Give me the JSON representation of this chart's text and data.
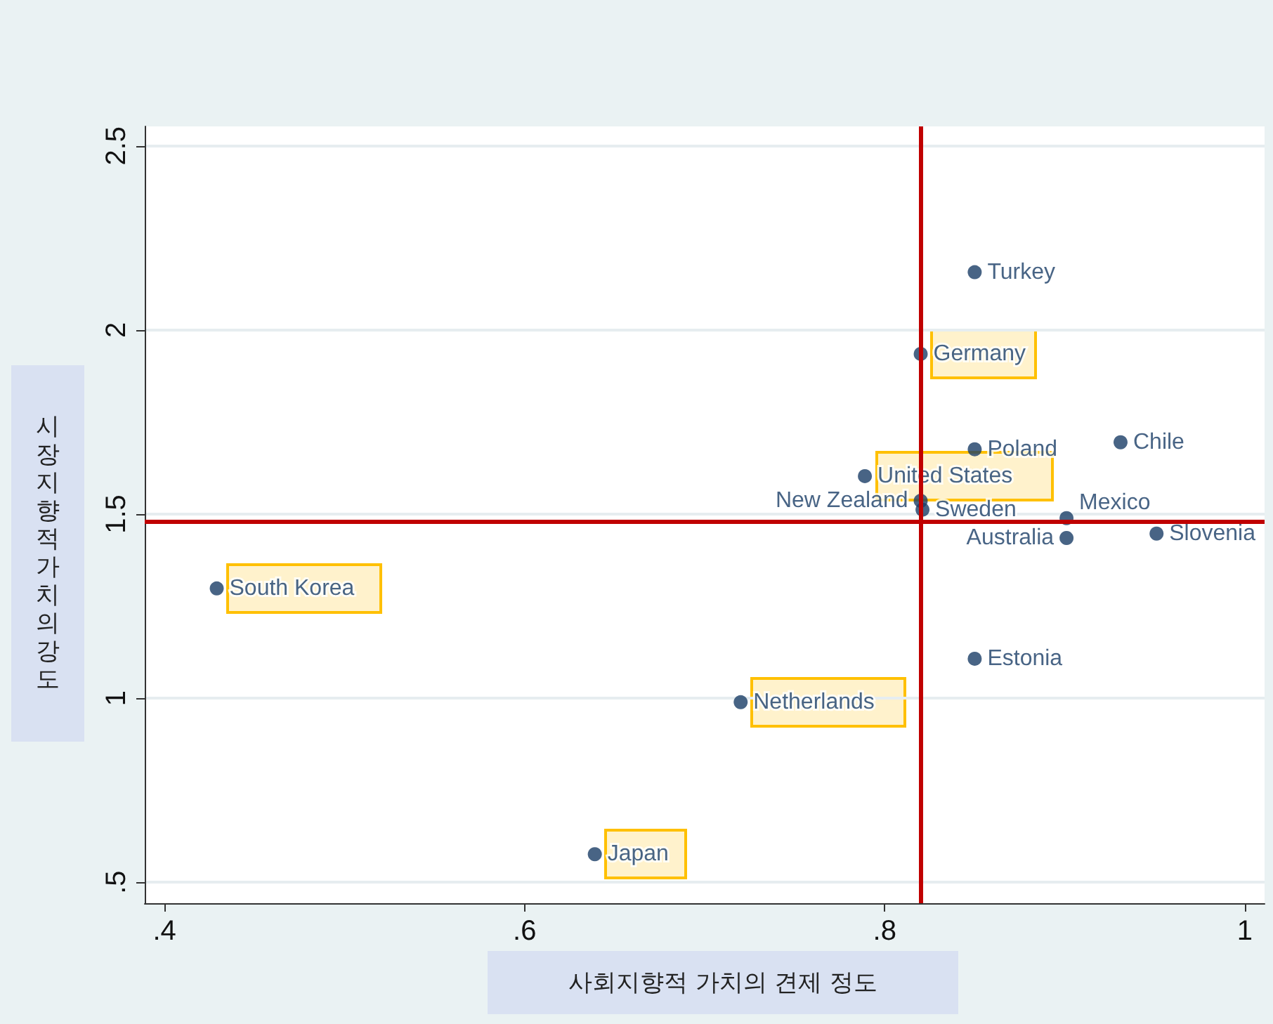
{
  "chart_data": {
    "type": "scatter",
    "xlabel": "사회지향적 가치의 견제 정도",
    "ylabel": "시장지향적 가치의 강도",
    "xlim": [
      0.389,
      1.011
    ],
    "ylim": [
      0.443,
      2.553
    ],
    "xticks": [
      {
        "value": 0.4,
        "label": ".4"
      },
      {
        "value": 0.6,
        "label": ".6"
      },
      {
        "value": 0.8,
        "label": ".8"
      },
      {
        "value": 1,
        "label": "1"
      }
    ],
    "yticks": [
      {
        "value": 0.5,
        "label": ".5"
      },
      {
        "value": 1,
        "label": "1"
      },
      {
        "value": 1.5,
        "label": "1.5"
      },
      {
        "value": 2,
        "label": "2"
      },
      {
        "value": 2.5,
        "label": "2.5"
      }
    ],
    "grid": "y",
    "marker": "circle",
    "series": [
      {
        "color": "#1a3d66",
        "x": [
          0.85,
          0.85,
          0.931,
          0.821,
          0.82,
          0.901,
          0.901,
          0.951,
          0.85
        ],
        "values": [
          2.157,
          1.676,
          1.695,
          1.512,
          1.536,
          1.489,
          1.435,
          1.447,
          1.107
        ]
      },
      {
        "color": "#1a3d66",
        "x": [
          0.82,
          0.789,
          0.429,
          0.72,
          0.639
        ],
        "values": [
          1.935,
          1.603,
          1.298,
          0.989,
          0.576
        ]
      }
    ],
    "annotations": [
      {
        "text": "Turkey",
        "x": 0.85,
        "y": 2.157
      },
      {
        "text": "Poland",
        "x": 0.85,
        "y": 1.676
      },
      {
        "text": "Chile",
        "x": 0.931,
        "y": 1.695
      },
      {
        "text": "Sweden",
        "x": 0.821,
        "y": 1.512
      },
      {
        "text": "New Zealand",
        "x": 0.82,
        "y": 1.536
      },
      {
        "text": "Mexico",
        "x": 0.901,
        "y": 1.489
      },
      {
        "text": "Australia",
        "x": 0.901,
        "y": 1.435
      },
      {
        "text": "Slovenia",
        "x": 0.951,
        "y": 1.447
      },
      {
        "text": "Estonia",
        "x": 0.85,
        "y": 1.107
      },
      {
        "text": "Germany",
        "x": 0.82,
        "y": 1.935
      },
      {
        "text": "United States",
        "x": 0.789,
        "y": 1.603
      },
      {
        "text": "South Korea",
        "x": 0.429,
        "y": 1.298
      },
      {
        "text": "Netherlands",
        "x": 0.72,
        "y": 0.989
      },
      {
        "text": "Japan",
        "x": 0.639,
        "y": 0.576
      }
    ],
    "ref_lines": [
      {
        "axis": "x",
        "value": 0.822,
        "color": "#c00000"
      },
      {
        "axis": "y",
        "value": 1.481,
        "color": "#c00000"
      }
    ]
  }
}
